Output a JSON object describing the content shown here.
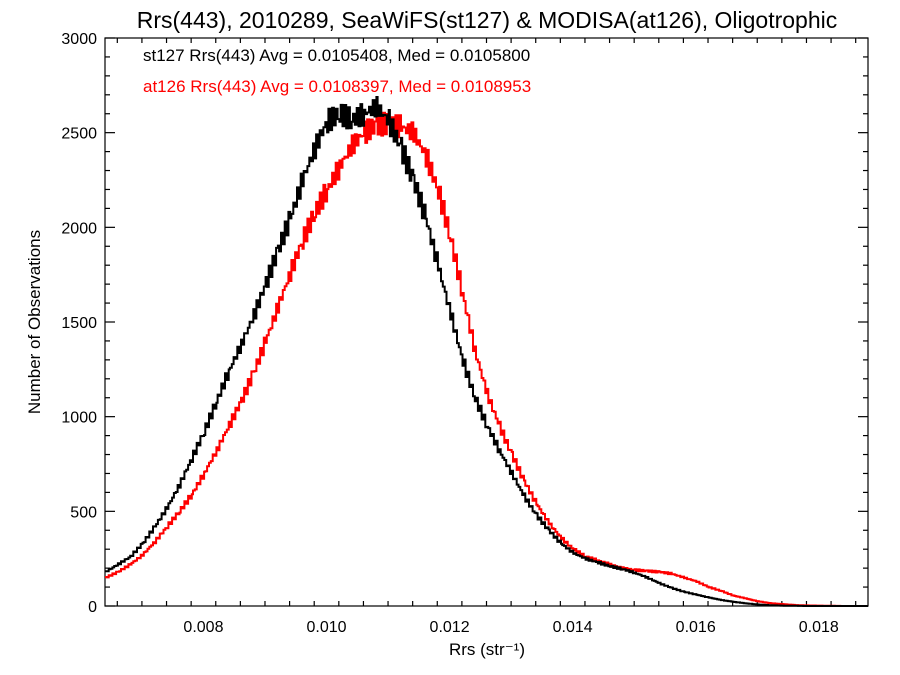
{
  "chart_data": {
    "type": "line",
    "title": "Rrs(443), 2010289, SeaWiFS(st127) & MODISA(at126), Oligotrophic",
    "xlabel": "Rrs (str⁻¹)",
    "ylabel": "Number of Observations",
    "xlim": [
      0.0064,
      0.0188
    ],
    "ylim": [
      0,
      3000
    ],
    "xticks": [
      0.008,
      0.01,
      0.012,
      0.014,
      0.016,
      0.018
    ],
    "xtick_labels": [
      "0.008",
      "0.010",
      "0.012",
      "0.014",
      "0.016",
      "0.018"
    ],
    "yticks": [
      0,
      500,
      1000,
      1500,
      2000,
      2500,
      3000
    ],
    "ytick_labels": [
      "0",
      "500",
      "1000",
      "1500",
      "2000",
      "2500",
      "3000"
    ],
    "legend_placement": "top-left",
    "grid": false,
    "series": [
      {
        "name": "st127",
        "label": "st127 Rrs(443) Avg = 0.0105408, Med = 0.0105800",
        "color": "#000000",
        "x": [
          0.0064,
          0.0066,
          0.0068,
          0.007,
          0.0072,
          0.0074,
          0.0076,
          0.0078,
          0.008,
          0.0082,
          0.0084,
          0.0086,
          0.0088,
          0.009,
          0.0092,
          0.0094,
          0.0096,
          0.0098,
          0.01,
          0.0102,
          0.0104,
          0.0106,
          0.0108,
          0.011,
          0.0112,
          0.0114,
          0.0116,
          0.0118,
          0.012,
          0.0122,
          0.0124,
          0.0126,
          0.0128,
          0.013,
          0.0132,
          0.0134,
          0.0136,
          0.0138,
          0.014,
          0.0142,
          0.0144,
          0.0146,
          0.0148,
          0.015,
          0.0152,
          0.0154,
          0.0156,
          0.0158,
          0.016,
          0.0162,
          0.0164,
          0.0166,
          0.0168,
          0.017,
          0.0172,
          0.0174,
          0.0176,
          0.0178,
          0.018,
          0.0182,
          0.0184,
          0.0186,
          0.0188
        ],
        "y": [
          180,
          220,
          260,
          330,
          420,
          520,
          640,
          780,
          920,
          1080,
          1240,
          1380,
          1530,
          1700,
          1880,
          2050,
          2250,
          2420,
          2560,
          2600,
          2570,
          2600,
          2640,
          2560,
          2420,
          2250,
          2050,
          1800,
          1550,
          1300,
          1100,
          950,
          820,
          700,
          580,
          480,
          400,
          330,
          280,
          250,
          230,
          210,
          195,
          175,
          150,
          120,
          95,
          75,
          60,
          45,
          32,
          22,
          14,
          8,
          4,
          2,
          1,
          0,
          0,
          0,
          0,
          0,
          0
        ]
      },
      {
        "name": "at126",
        "label": "at126 Rrs(443) Avg = 0.0108397, Med = 0.0108953",
        "color": "#ff0000",
        "x": [
          0.0064,
          0.0066,
          0.0068,
          0.007,
          0.0072,
          0.0074,
          0.0076,
          0.0078,
          0.008,
          0.0082,
          0.0084,
          0.0086,
          0.0088,
          0.009,
          0.0092,
          0.0094,
          0.0096,
          0.0098,
          0.01,
          0.0102,
          0.0104,
          0.0106,
          0.0108,
          0.011,
          0.0112,
          0.0114,
          0.0116,
          0.0118,
          0.012,
          0.0122,
          0.0124,
          0.0126,
          0.0128,
          0.013,
          0.0132,
          0.0134,
          0.0136,
          0.0138,
          0.014,
          0.0142,
          0.0144,
          0.0146,
          0.0148,
          0.015,
          0.0152,
          0.0154,
          0.0156,
          0.0158,
          0.016,
          0.0162,
          0.0164,
          0.0166,
          0.0168,
          0.017,
          0.0172,
          0.0174,
          0.0176,
          0.0178,
          0.018,
          0.0182,
          0.0184,
          0.0186,
          0.0188
        ],
        "y": [
          150,
          180,
          220,
          270,
          340,
          420,
          500,
          590,
          700,
          820,
          950,
          1080,
          1230,
          1400,
          1580,
          1760,
          1930,
          2080,
          2200,
          2320,
          2430,
          2500,
          2540,
          2550,
          2530,
          2500,
          2380,
          2200,
          1950,
          1650,
          1350,
          1120,
          950,
          800,
          660,
          540,
          440,
          360,
          300,
          260,
          240,
          220,
          200,
          190,
          185,
          180,
          170,
          150,
          130,
          100,
          80,
          55,
          40,
          25,
          15,
          10,
          5,
          3,
          2,
          1,
          0,
          0,
          0
        ]
      }
    ]
  }
}
